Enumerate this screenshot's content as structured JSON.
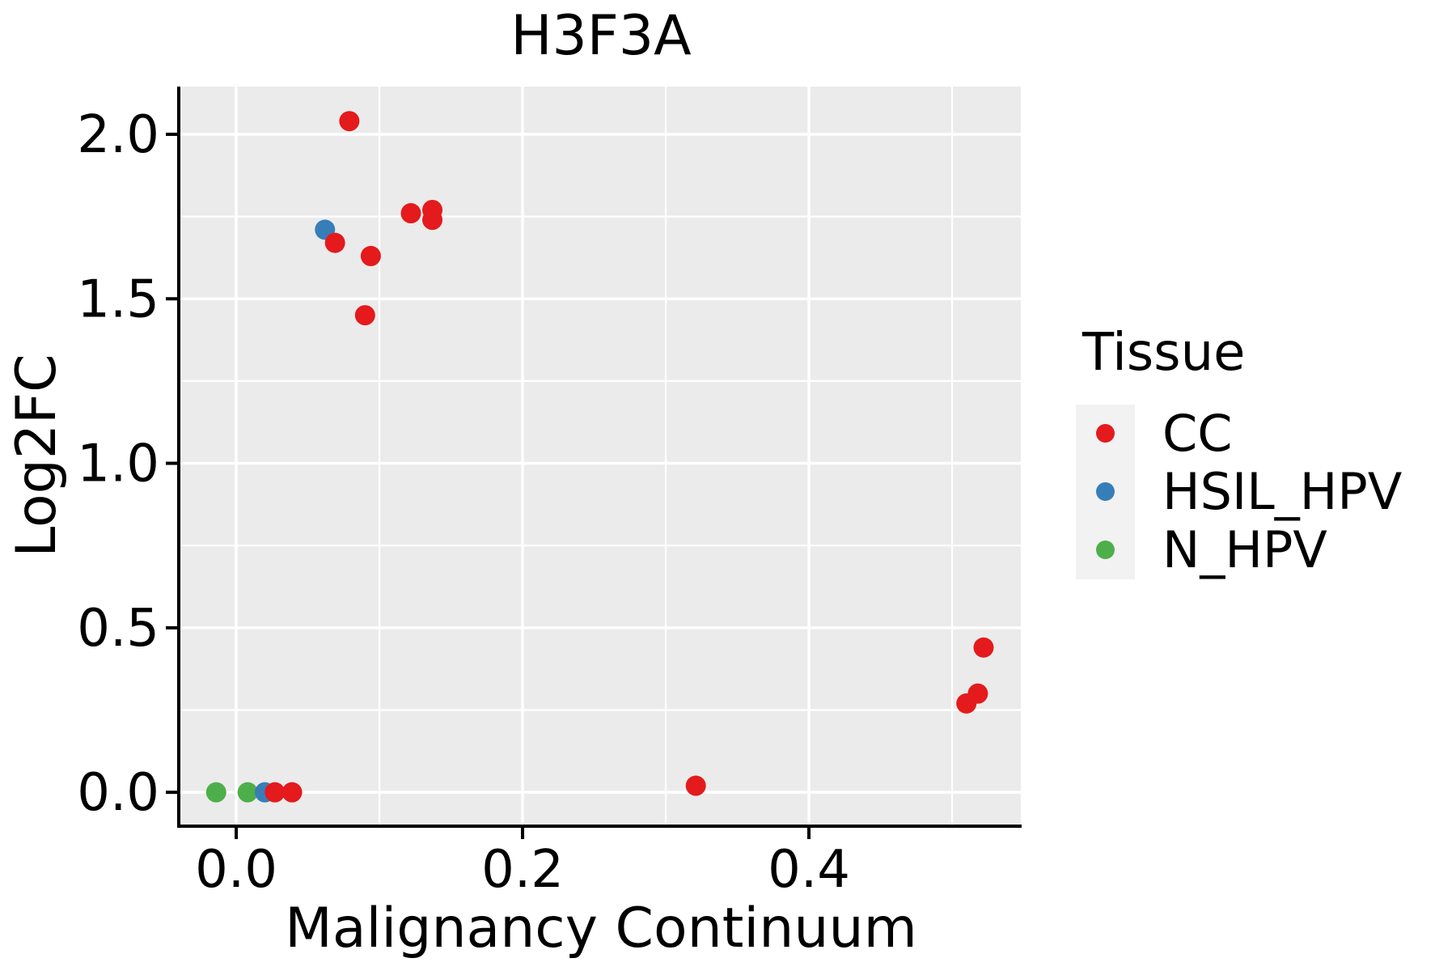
{
  "chart_data": {
    "type": "scatter",
    "title": "H3F3A",
    "xlabel": "Malignancy Continuum",
    "ylabel": "Log2FC",
    "legend_title": "Tissue",
    "legend_position": "right",
    "xlim": [
      -0.039,
      0.548
    ],
    "ylim": [
      -0.098,
      2.145
    ],
    "x_ticks": [
      0.0,
      0.2,
      0.4
    ],
    "x_tick_labels": [
      "0.0",
      "0.2",
      "0.4"
    ],
    "y_ticks": [
      0.0,
      0.5,
      1.0,
      1.5,
      2.0
    ],
    "y_tick_labels": [
      "0.0",
      "0.5",
      "1.0",
      "1.5",
      "2.0"
    ],
    "x_minor_ticks": [
      0.1,
      0.3,
      0.5
    ],
    "y_minor_ticks": [
      0.25,
      0.75,
      1.25,
      1.75
    ],
    "grid": true,
    "panel_bg": "#ebebeb",
    "grid_color": "#ffffff",
    "legend_key_bg": "#f2f2f2",
    "axis_color": "#000000",
    "marker_diameter_px": 25,
    "series": [
      {
        "name": "CC",
        "color": "#e41a1c",
        "points": [
          [
            0.079,
            2.04
          ],
          [
            0.069,
            1.67
          ],
          [
            0.094,
            1.63
          ],
          [
            0.09,
            1.45
          ],
          [
            0.122,
            1.76
          ],
          [
            0.137,
            1.77
          ],
          [
            0.137,
            1.74
          ],
          [
            0.027,
            0.0
          ],
          [
            0.039,
            0.0
          ],
          [
            0.321,
            0.02
          ],
          [
            0.522,
            0.44
          ],
          [
            0.518,
            0.3
          ],
          [
            0.51,
            0.27
          ]
        ]
      },
      {
        "name": "HSIL_HPV",
        "color": "#377eb8",
        "points": [
          [
            0.062,
            1.71
          ],
          [
            0.02,
            0.0
          ]
        ]
      },
      {
        "name": "N_HPV",
        "color": "#4daf4a",
        "points": [
          [
            -0.014,
            0.0
          ],
          [
            0.008,
            0.0
          ]
        ]
      }
    ]
  }
}
